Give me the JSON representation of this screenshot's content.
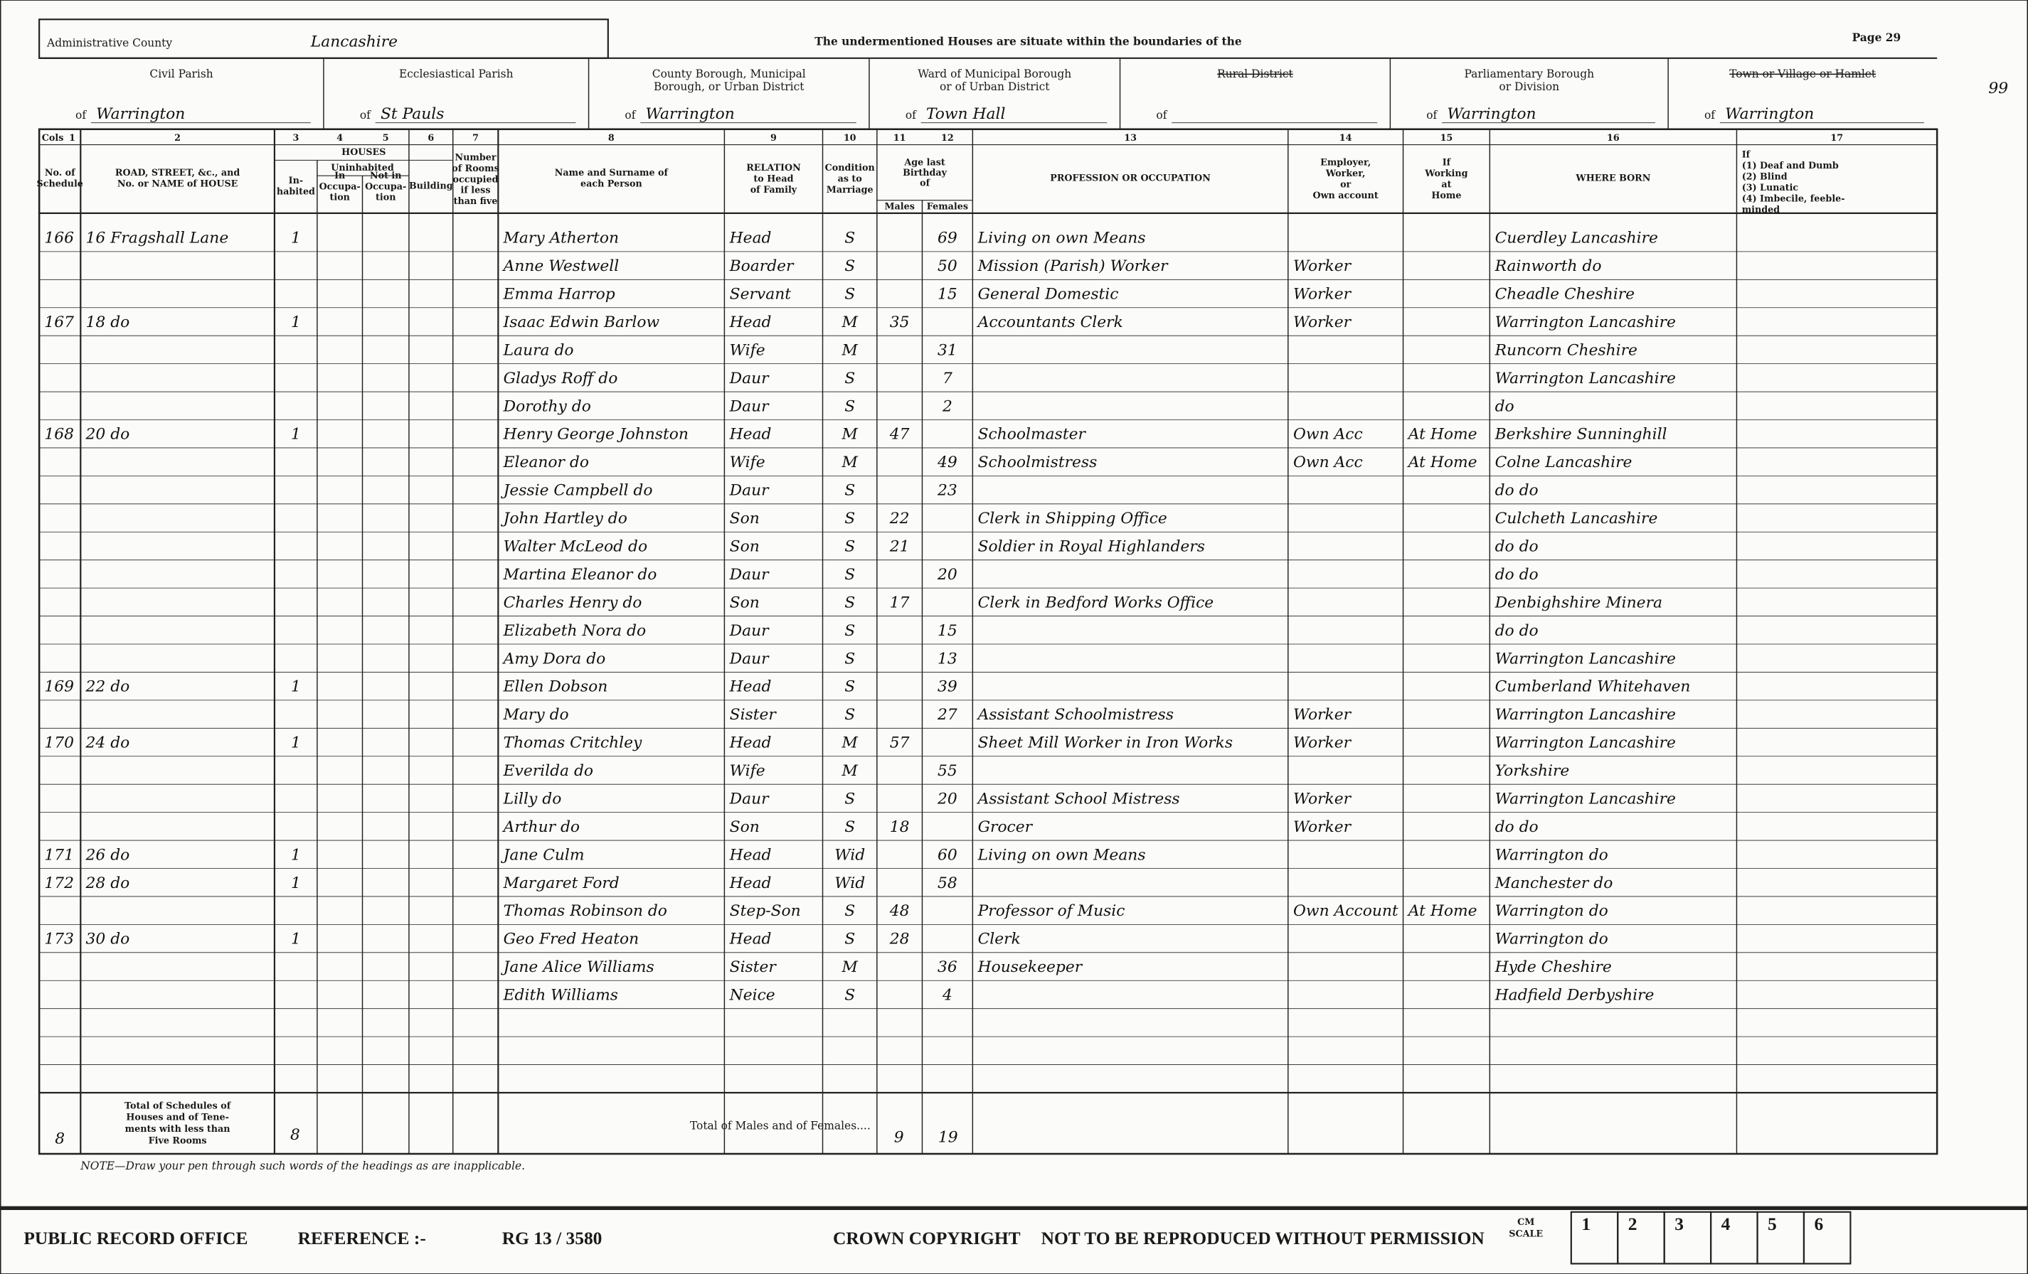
{
  "header": {
    "county_label": "Administrative County",
    "county": "Lancashire",
    "notice": "The undermentioned Houses are situate within the boundaries of the",
    "page": "Page 29",
    "folio": "99",
    "of_label": "of"
  },
  "divisions": [
    {
      "label": [
        "Civil Parish"
      ],
      "value": "Warrington"
    },
    {
      "label": [
        "Ecclesiastical Parish"
      ],
      "value": "St Pauls"
    },
    {
      "label": [
        "County Borough, Municipal",
        "Borough, or Urban District"
      ],
      "value": "Warrington"
    },
    {
      "label": [
        "Ward of Municipal Borough",
        "or of Urban District"
      ],
      "value": "Town Hall"
    },
    {
      "label": [
        "Rural District"
      ]
    },
    {
      "label": [
        "Parliamentary Borough",
        "or Division"
      ],
      "value": "Warrington"
    },
    {
      "label": [
        "Town or Village or Hamlet"
      ],
      "value": "Warrington"
    }
  ],
  "cols_label": "Cols",
  "houses_heading": "HOUSES",
  "uninhabited_heading": "Uninhabited",
  "age_heading": [
    "Age last",
    "Birthday",
    "of"
  ],
  "columns": [
    {
      "number": "1",
      "heading": [
        "No. of",
        "Schedule"
      ]
    },
    {
      "number": "2",
      "heading": [
        "ROAD, STREET, &c., and",
        "No. or NAME of HOUSE"
      ]
    },
    {
      "number": "3",
      "heading": [
        "In-",
        "habited"
      ]
    },
    {
      "number": "4",
      "heading": [
        "In",
        "Occupa-",
        "tion"
      ]
    },
    {
      "number": "5",
      "heading": [
        "Not in",
        "Occupa-",
        "tion"
      ]
    },
    {
      "number": "6",
      "heading": [
        "Building"
      ]
    },
    {
      "number": "7",
      "heading": [
        "Number",
        "of Rooms",
        "occupied",
        "if less",
        "than five"
      ]
    },
    {
      "number": "8",
      "heading": [
        "Name and Surname of",
        "each Person"
      ]
    },
    {
      "number": "9",
      "heading": [
        "RELATION",
        "to Head",
        "of Family"
      ]
    },
    {
      "number": "10",
      "heading": [
        "Condition",
        "as to",
        "Marriage"
      ]
    },
    {
      "number": "11",
      "heading": [
        "Males"
      ]
    },
    {
      "number": "12",
      "heading": [
        "Females"
      ]
    },
    {
      "number": "13",
      "heading": [
        "PROFESSION OR OCCUPATION"
      ]
    },
    {
      "number": "14",
      "heading": [
        "Employer,",
        "Worker,",
        "or",
        "Own account"
      ]
    },
    {
      "number": "15",
      "heading": [
        "If",
        "Working",
        "at",
        "Home"
      ]
    },
    {
      "number": "16",
      "heading": [
        "WHERE BORN"
      ]
    },
    {
      "number": "17",
      "heading": [
        "If",
        "(1) Deaf and Dumb",
        "(2) Blind",
        "(3) Lunatic",
        "(4) Imbecile, feeble-",
        "minded"
      ]
    }
  ],
  "rows": [
    {
      "schedule": "166",
      "address": "16 Fragshall Lane",
      "inhabited": "1",
      "name": "Mary Atherton",
      "relation": "Head",
      "condition": "S",
      "age_female": "69",
      "occupation": "Living on own Means",
      "birthplace": "Cuerdley Lancashire"
    },
    {
      "name": "Anne Westwell",
      "relation": "Boarder",
      "condition": "S",
      "age_female": "50",
      "occupation": "Mission (Parish) Worker",
      "employment": "Worker",
      "birthplace": "Rainworth do"
    },
    {
      "name": "Emma Harrop",
      "relation": "Servant",
      "condition": "S",
      "age_female": "15",
      "occupation": "General Domestic",
      "employment": "Worker",
      "birthplace": "Cheadle Cheshire"
    },
    {
      "schedule": "167",
      "address": "18 do",
      "inhabited": "1",
      "name": "Isaac Edwin Barlow",
      "relation": "Head",
      "condition": "M",
      "age_male": "35",
      "occupation": "Accountants Clerk",
      "employment": "Worker",
      "birthplace": "Warrington Lancashire"
    },
    {
      "name": "Laura do",
      "relation": "Wife",
      "condition": "M",
      "age_female": "31",
      "birthplace": "Runcorn Cheshire"
    },
    {
      "name": "Gladys Roff do",
      "relation": "Daur",
      "condition": "S",
      "age_female": "7",
      "birthplace": "Warrington Lancashire"
    },
    {
      "name": "Dorothy do",
      "relation": "Daur",
      "condition": "S",
      "age_female": "2",
      "birthplace": "do"
    },
    {
      "schedule": "168",
      "address": "20 do",
      "inhabited": "1",
      "name": "Henry George Johnston",
      "relation": "Head",
      "condition": "M",
      "age_male": "47",
      "occupation": "Schoolmaster",
      "employment": "Own Acc",
      "at_home": "At Home",
      "birthplace": "Berkshire Sunninghill"
    },
    {
      "name": "Eleanor do",
      "relation": "Wife",
      "condition": "M",
      "age_female": "49",
      "occupation": "Schoolmistress",
      "employment": "Own Acc",
      "at_home": "At Home",
      "birthplace": "Colne Lancashire"
    },
    {
      "name": "Jessie Campbell do",
      "relation": "Daur",
      "condition": "S",
      "age_female": "23",
      "birthplace": "do do"
    },
    {
      "name": "John Hartley do",
      "relation": "Son",
      "condition": "S",
      "age_male": "22",
      "occupation": "Clerk in Shipping Office",
      "birthplace": "Culcheth Lancashire"
    },
    {
      "name": "Walter McLeod do",
      "relation": "Son",
      "condition": "S",
      "age_male": "21",
      "occupation": "Soldier in Royal Highlanders",
      "birthplace": "do do"
    },
    {
      "name": "Martina Eleanor do",
      "relation": "Daur",
      "condition": "S",
      "age_female": "20",
      "birthplace": "do do"
    },
    {
      "name": "Charles Henry do",
      "relation": "Son",
      "condition": "S",
      "age_male": "17",
      "occupation": "Clerk in Bedford Works Office",
      "birthplace": "Denbighshire Minera"
    },
    {
      "name": "Elizabeth Nora do",
      "relation": "Daur",
      "condition": "S",
      "age_female": "15",
      "birthplace": "do do"
    },
    {
      "name": "Amy Dora do",
      "relation": "Daur",
      "condition": "S",
      "age_female": "13",
      "birthplace": "Warrington Lancashire"
    },
    {
      "schedule": "169",
      "address": "22 do",
      "inhabited": "1",
      "name": "Ellen Dobson",
      "relation": "Head",
      "condition": "S",
      "age_female": "39",
      "birthplace": "Cumberland Whitehaven"
    },
    {
      "name": "Mary do",
      "relation": "Sister",
      "condition": "S",
      "age_female": "27",
      "occupation": "Assistant Schoolmistress",
      "employment": "Worker",
      "birthplace": "Warrington Lancashire"
    },
    {
      "schedule": "170",
      "address": "24 do",
      "inhabited": "1",
      "name": "Thomas Critchley",
      "relation": "Head",
      "condition": "M",
      "age_male": "57",
      "occupation": "Sheet Mill Worker in Iron Works",
      "employment": "Worker",
      "birthplace": "Warrington Lancashire"
    },
    {
      "name": "Everilda do",
      "relation": "Wife",
      "condition": "M",
      "age_female": "55",
      "birthplace": "Yorkshire"
    },
    {
      "name": "Lilly do",
      "relation": "Daur",
      "condition": "S",
      "age_female": "20",
      "occupation": "Assistant School Mistress",
      "employment": "Worker",
      "birthplace": "Warrington Lancashire"
    },
    {
      "name": "Arthur do",
      "relation": "Son",
      "condition": "S",
      "age_male": "18",
      "occupation": "Grocer",
      "employment": "Worker",
      "birthplace": "do do"
    },
    {
      "schedule": "171",
      "address": "26 do",
      "inhabited": "1",
      "name": "Jane Culm",
      "relation": "Head",
      "condition": "Wid",
      "age_female": "60",
      "occupation": "Living on own Means",
      "birthplace": "Warrington do"
    },
    {
      "schedule": "172",
      "address": "28 do",
      "inhabited": "1",
      "name": "Margaret Ford",
      "relation": "Head",
      "condition": "Wid",
      "age_female": "58",
      "birthplace": "Manchester do"
    },
    {
      "name": "Thomas Robinson do",
      "relation": "Step-Son",
      "condition": "S",
      "age_male": "48",
      "occupation": "Professor of Music",
      "employment": "Own Account",
      "at_home": "At Home",
      "birthplace": "Warrington do"
    },
    {
      "schedule": "173",
      "address": "30 do",
      "inhabited": "1",
      "name": "Geo Fred Heaton",
      "relation": "Head",
      "condition": "S",
      "age_male": "28",
      "occupation": "Clerk",
      "birthplace": "Warrington do"
    },
    {
      "name": "Jane Alice Williams",
      "relation": "Sister",
      "condition": "M",
      "age_female": "36",
      "occupation": "Housekeeper",
      "birthplace": "Hyde Cheshire"
    },
    {
      "name": "Edith Williams",
      "relation": "Neice",
      "condition": "S",
      "age_female": "4",
      "birthplace": "Hadfield Derbyshire"
    }
  ],
  "totals": {
    "schedules_label": [
      "Total of Schedules of",
      "Houses and of Tene-",
      "ments with less than",
      "Five Rooms"
    ],
    "schedules": "8",
    "inhabited": "8",
    "persons_label": "Total of Males and of Females....",
    "males": "9",
    "females": "19"
  },
  "note": "NOTE—Draw your pen through such words of the headings as are inapplicable.",
  "footer": {
    "office": "PUBLIC RECORD OFFICE",
    "reference_label": "REFERENCE :-",
    "reference": "RG 13 / 3580",
    "copyright": "CROWN COPYRIGHT",
    "permission": "NOT TO BE REPRODUCED WITHOUT PERMISSION",
    "scale_label": [
      "CM",
      "SCALE"
    ],
    "scale": [
      1,
      2,
      3,
      4,
      5,
      6
    ]
  }
}
